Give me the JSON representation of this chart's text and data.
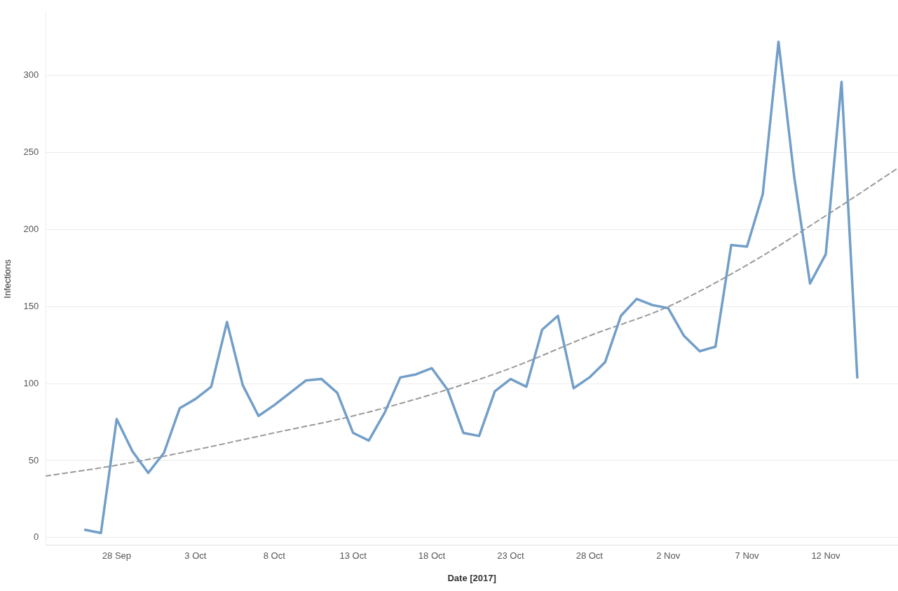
{
  "chart_data": {
    "type": "line",
    "xlabel": "Date [2017]",
    "ylabel": "Infections",
    "x": [
      "2017-09-26",
      "2017-09-27",
      "2017-09-28",
      "2017-09-29",
      "2017-09-30",
      "2017-10-01",
      "2017-10-02",
      "2017-10-03",
      "2017-10-04",
      "2017-10-05",
      "2017-10-06",
      "2017-10-07",
      "2017-10-08",
      "2017-10-09",
      "2017-10-10",
      "2017-10-11",
      "2017-10-12",
      "2017-10-13",
      "2017-10-14",
      "2017-10-15",
      "2017-10-16",
      "2017-10-17",
      "2017-10-18",
      "2017-10-19",
      "2017-10-20",
      "2017-10-21",
      "2017-10-22",
      "2017-10-23",
      "2017-10-24",
      "2017-10-25",
      "2017-10-26",
      "2017-10-27",
      "2017-10-28",
      "2017-10-29",
      "2017-10-30",
      "2017-10-31",
      "2017-11-01",
      "2017-11-02",
      "2017-11-03",
      "2017-11-04",
      "2017-11-05",
      "2017-11-06",
      "2017-11-07",
      "2017-11-08",
      "2017-11-09",
      "2017-11-10",
      "2017-11-11",
      "2017-11-12",
      "2017-11-13",
      "2017-11-14"
    ],
    "series": [
      {
        "color": "#729ec8",
        "line_style": "solid",
        "values": [
          5,
          3,
          77,
          56,
          42,
          55,
          84,
          90,
          98,
          140,
          99,
          79,
          86,
          94,
          102,
          103,
          94,
          68,
          63,
          81,
          104,
          106,
          110,
          96,
          68,
          66,
          95,
          103,
          98,
          135,
          144,
          97,
          104,
          114,
          144,
          155,
          151,
          149,
          131,
          121,
          124,
          190,
          189,
          223,
          322,
          234,
          165,
          184,
          296,
          104
        ]
      },
      {
        "type": "line",
        "color": "#999999",
        "line_style": "dashed",
        "x": [
          "2017-09-23T12:00",
          "2017-09-28",
          "2017-10-03",
          "2017-10-08",
          "2017-10-13",
          "2017-10-18",
          "2017-10-23",
          "2017-10-28",
          "2017-11-02",
          "2017-11-07",
          "2017-11-12",
          "2017-11-16T14:00"
        ],
        "values": [
          40,
          47,
          57,
          68,
          79,
          93,
          110,
          131,
          150,
          177,
          209,
          240
        ]
      }
    ],
    "xlim": [
      "2017-09-23T12:00",
      "2017-11-16T14:00"
    ],
    "xticks": [
      {
        "value": "2017-09-28",
        "label": "28 Sep"
      },
      {
        "value": "2017-10-03",
        "label": "3 Oct"
      },
      {
        "value": "2017-10-08",
        "label": "8 Oct"
      },
      {
        "value": "2017-10-13",
        "label": "13 Oct"
      },
      {
        "value": "2017-10-18",
        "label": "18 Oct"
      },
      {
        "value": "2017-10-23",
        "label": "23 Oct"
      },
      {
        "value": "2017-10-28",
        "label": "28 Oct"
      },
      {
        "value": "2017-11-02",
        "label": "2 Nov"
      },
      {
        "value": "2017-11-07",
        "label": "7 Nov"
      },
      {
        "value": "2017-11-12",
        "label": "12 Nov"
      }
    ],
    "ylim": [
      -5,
      341
    ],
    "yticks": [
      0,
      50,
      100,
      150,
      200,
      250,
      300
    ],
    "grid": "y",
    "legend": false,
    "marker": "none"
  }
}
